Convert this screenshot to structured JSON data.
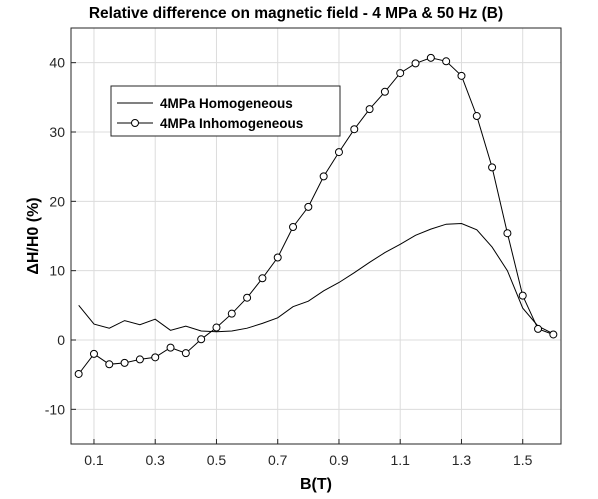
{
  "chart_data": {
    "type": "line",
    "title": "Relative difference on magnetic field - 4 MPa & 50 Hz (B)",
    "xlabel": "B(T)",
    "ylabel": "ΔH/H0 (%)",
    "xlim": [
      0.025,
      1.625
    ],
    "ylim": [
      -15,
      45
    ],
    "xticks": [
      0.1,
      0.3,
      0.5,
      0.7,
      0.9,
      1.1,
      1.3,
      1.5
    ],
    "xtick_labels": [
      "0.1",
      "0.3",
      "0.5",
      "0.7",
      "0.9",
      "1.1",
      "1.3",
      "1.5"
    ],
    "yticks": [
      -10,
      0,
      10,
      20,
      30,
      40
    ],
    "ytick_labels": [
      "-10",
      "0",
      "10",
      "20",
      "30",
      "40"
    ],
    "grid": true,
    "legend_position": "top-left",
    "series": [
      {
        "name": "4MPa Homogeneous",
        "marker": "none",
        "color": "#000000",
        "x": [
          0.05,
          0.1,
          0.15,
          0.2,
          0.25,
          0.3,
          0.35,
          0.4,
          0.45,
          0.5,
          0.55,
          0.6,
          0.65,
          0.7,
          0.75,
          0.8,
          0.85,
          0.9,
          0.95,
          1.0,
          1.05,
          1.1,
          1.15,
          1.2,
          1.25,
          1.3,
          1.35,
          1.4,
          1.45,
          1.5,
          1.55,
          1.6
        ],
        "y": [
          5.0,
          2.3,
          1.7,
          2.8,
          2.2,
          3.0,
          1.4,
          2.0,
          1.3,
          1.2,
          1.3,
          1.7,
          2.4,
          3.2,
          4.8,
          5.6,
          7.1,
          8.3,
          9.7,
          11.2,
          12.6,
          13.8,
          15.1,
          16.0,
          16.7,
          16.8,
          15.9,
          13.4,
          10.0,
          4.6,
          2.0,
          0.9
        ]
      },
      {
        "name": "4MPa Inhomogeneous",
        "marker": "circle",
        "color": "#000000",
        "x": [
          0.05,
          0.1,
          0.15,
          0.2,
          0.25,
          0.3,
          0.35,
          0.4,
          0.45,
          0.5,
          0.55,
          0.6,
          0.65,
          0.7,
          0.75,
          0.8,
          0.85,
          0.9,
          0.95,
          1.0,
          1.05,
          1.1,
          1.15,
          1.2,
          1.25,
          1.3,
          1.35,
          1.4,
          1.45,
          1.5,
          1.55,
          1.6
        ],
        "y": [
          -4.9,
          -2.0,
          -3.5,
          -3.3,
          -2.8,
          -2.5,
          -1.1,
          -1.9,
          0.1,
          1.8,
          3.8,
          6.1,
          8.9,
          11.9,
          16.3,
          19.2,
          23.6,
          27.1,
          30.4,
          33.3,
          35.8,
          38.5,
          39.9,
          40.7,
          40.2,
          38.1,
          32.3,
          24.9,
          15.4,
          6.4,
          1.6,
          0.8
        ]
      }
    ]
  }
}
